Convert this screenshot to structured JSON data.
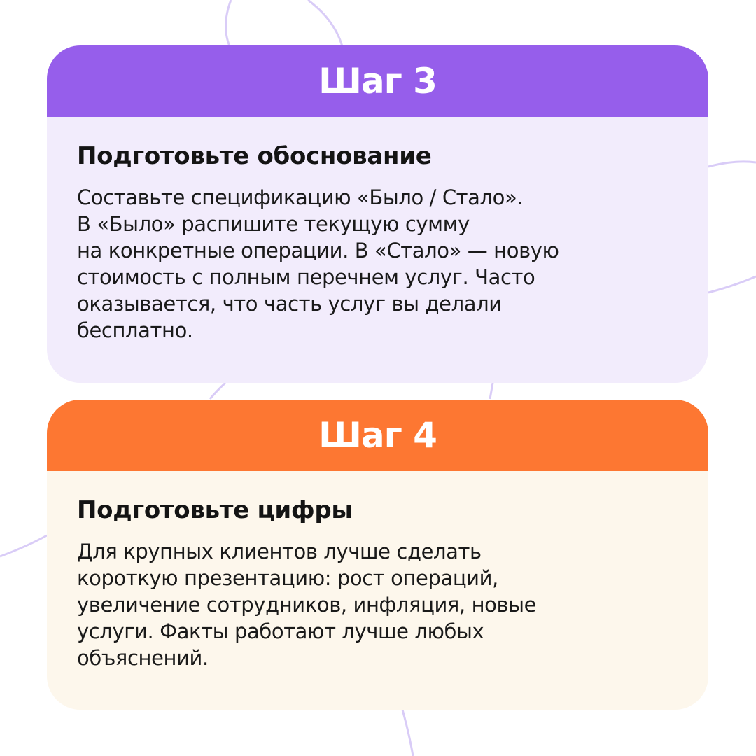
{
  "colors": {
    "step3_header": "#965EEB",
    "step3_body": "#F2ECFC",
    "step4_header": "#FD7732",
    "step4_body": "#FDF7EC",
    "decor_lines": "#D9CCF7"
  },
  "steps": [
    {
      "header": "Шаг 3",
      "title": "Подготовьте обоснование",
      "lines": [
        "Составьте спецификацию «Было / Стало».",
        "В «Было» распишите текущую сумму",
        "на конкретные операции. В «Стало» — новую",
        "стоимость с полным перечнем услуг. Часто",
        "оказывается, что часть услуг вы делали",
        "бесплатно."
      ]
    },
    {
      "header": "Шаг 4",
      "title": "Подготовьте цифры",
      "lines": [
        "Для крупных клиентов лучше сделать",
        "короткую презентацию: рост операций,",
        "увеличение сотрудников, инфляция, новые",
        "услуги. Факты работают лучше любых",
        "объяснений."
      ]
    }
  ]
}
